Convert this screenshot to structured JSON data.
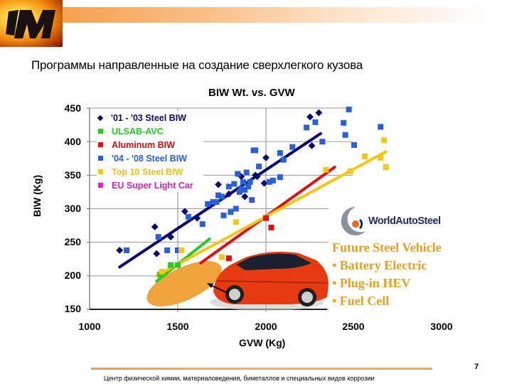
{
  "slide": {
    "title": "Программы направленные на создание сверхлегкого кузова",
    "footer": "Центр физической химии, материаловедения, биметаллов и специальных видов коррозии",
    "page_number": "7",
    "logo": "logo-icon"
  },
  "inset": {
    "brand": "WorldAutoSteel",
    "heading": "Future Steel Vehicle",
    "items": [
      "• Battery Electric",
      "• Plug-in HEV",
      "• Fuel Cell"
    ]
  },
  "chart_data": {
    "type": "scatter",
    "title": "BIW Wt. vs. GVW",
    "xlabel": "GVW (Kg)",
    "ylabel": "BIW (Kg)",
    "xlim": [
      1000,
      3000
    ],
    "ylim": [
      150,
      450
    ],
    "x_ticks": [
      "1000",
      "1500",
      "2000",
      "2500",
      "3000"
    ],
    "y_ticks": [
      "450",
      "400",
      "350",
      "300",
      "250",
      "200",
      "150"
    ],
    "grid": true,
    "legend_position": "upper-left",
    "series": [
      {
        "name": "'01 - '03 Steel BIW",
        "color": "#0a0a6e",
        "marker": "diamond",
        "points": [
          [
            1170,
            238
          ],
          [
            1370,
            273
          ],
          [
            1380,
            233
          ],
          [
            1460,
            258
          ],
          [
            1540,
            296
          ],
          [
            1610,
            286
          ],
          [
            1730,
            336
          ],
          [
            1790,
            322
          ],
          [
            1860,
            348
          ],
          [
            1880,
            318
          ],
          [
            1940,
            350
          ],
          [
            1950,
            348
          ],
          [
            1990,
            338
          ],
          [
            2000,
            376
          ],
          [
            2250,
            437
          ],
          [
            2300,
            443
          ],
          [
            2260,
            394
          ]
        ],
        "trend": [
          [
            1170,
            213
          ],
          [
            2310,
            412
          ]
        ]
      },
      {
        "name": "ULSAB-AVC",
        "color": "#22cc22",
        "marker": "square",
        "points": [
          [
            1400,
            202
          ],
          [
            1460,
            216
          ],
          [
            1500,
            216
          ]
        ],
        "trend": [
          [
            1380,
            192
          ],
          [
            1680,
            255
          ]
        ]
      },
      {
        "name": "Aluminum BIW",
        "color": "#e01010",
        "marker": "square",
        "points": [
          [
            1790,
            226
          ],
          [
            2000,
            286
          ],
          [
            2030,
            272
          ]
        ],
        "trend": [
          [
            1630,
            219
          ],
          [
            2390,
            362
          ]
        ]
      },
      {
        "name": "'04 - '08 Steel BIW",
        "color": "#2b5fd9",
        "marker": "square",
        "points": [
          [
            1210,
            238
          ],
          [
            1390,
            258
          ],
          [
            1440,
            238
          ],
          [
            1500,
            238
          ],
          [
            1560,
            288
          ],
          [
            1640,
            277
          ],
          [
            1670,
            307
          ],
          [
            1700,
            310
          ],
          [
            1720,
            310
          ],
          [
            1730,
            320
          ],
          [
            1750,
            318
          ],
          [
            1760,
            290
          ],
          [
            1790,
            333
          ],
          [
            1800,
            295
          ],
          [
            1820,
            337
          ],
          [
            1830,
            300
          ],
          [
            1840,
            352
          ],
          [
            1850,
            325
          ],
          [
            1860,
            330
          ],
          [
            1870,
            340
          ],
          [
            1880,
            328
          ],
          [
            1890,
            354
          ],
          [
            1900,
            333
          ],
          [
            1910,
            340
          ],
          [
            1920,
            313
          ],
          [
            1930,
            387
          ],
          [
            1940,
            387
          ],
          [
            1960,
            363
          ],
          [
            2020,
            340
          ],
          [
            2040,
            342
          ],
          [
            2080,
            347
          ],
          [
            2080,
            383
          ],
          [
            2100,
            373
          ],
          [
            2150,
            392
          ],
          [
            2230,
            421
          ],
          [
            2280,
            429
          ],
          [
            2320,
            400
          ],
          [
            2440,
            428
          ],
          [
            2450,
            410
          ],
          [
            2470,
            448
          ],
          [
            2500,
            395
          ],
          [
            2650,
            422
          ]
        ],
        "trend": null
      },
      {
        "name": "Top 10 Steel BIW",
        "color": "#f5c518",
        "marker": "square",
        "points": [
          [
            1410,
            206
          ],
          [
            1520,
            238
          ],
          [
            1750,
            228
          ],
          [
            1830,
            280
          ],
          [
            2340,
            358
          ],
          [
            2480,
            356
          ],
          [
            2560,
            378
          ],
          [
            2650,
            376
          ],
          [
            2670,
            402
          ],
          [
            2680,
            362
          ]
        ],
        "trend": [
          [
            1380,
            200
          ],
          [
            2680,
            385
          ]
        ]
      },
      {
        "name": "EU Super Light Car",
        "color": "#e020c8",
        "marker": "square",
        "points": [],
        "trend": null
      }
    ],
    "annotations": [
      {
        "type": "ellipse",
        "label": "target region (orange hatched)",
        "center": [
          1570,
          184
        ],
        "color": "#f5a030"
      },
      {
        "type": "image",
        "label": "red concept car with arrow pointing to ellipse"
      }
    ]
  }
}
